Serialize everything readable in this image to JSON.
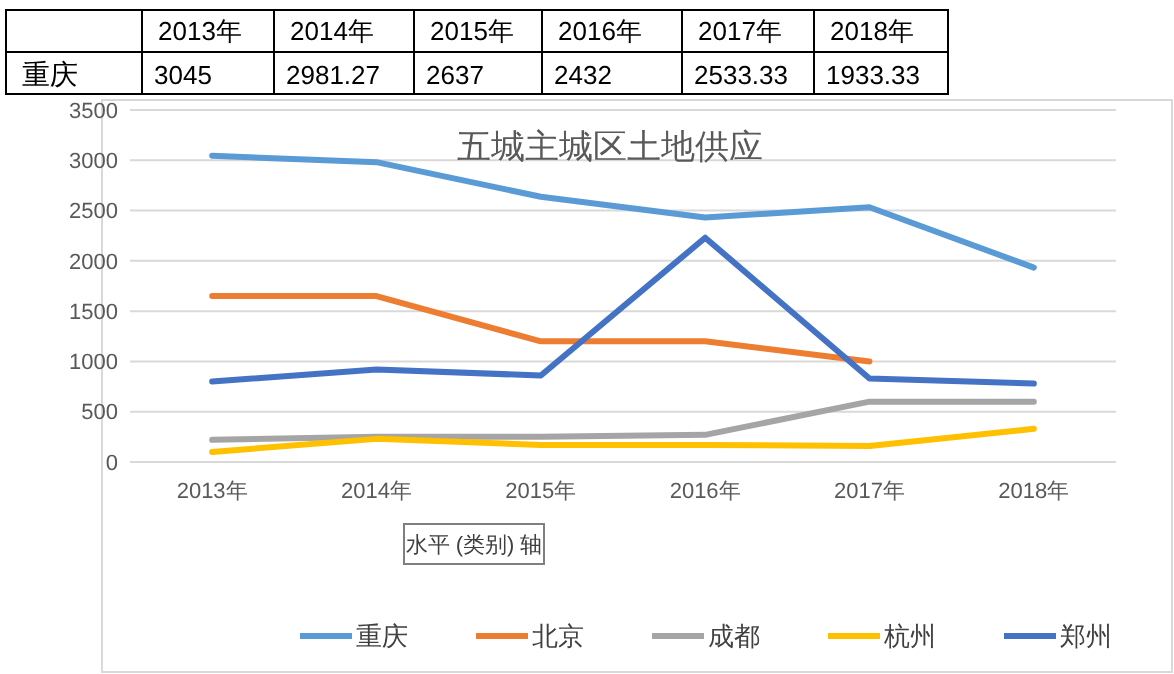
{
  "chart_data": {
    "type": "line",
    "title": "五城主城区土地供应",
    "categories": [
      "2013年",
      "2014年",
      "2015年",
      "2016年",
      "2017年",
      "2018年"
    ],
    "series": [
      {
        "name": "重庆",
        "color": "#5b9bd5",
        "values": [
          3045,
          2981.27,
          2637,
          2432,
          2533.33,
          1933.33
        ]
      },
      {
        "name": "北京",
        "color": "#ed7d31",
        "values": [
          1650,
          1650,
          1200,
          1200,
          1000,
          null
        ]
      },
      {
        "name": "成都",
        "color": "#a5a5a5",
        "values": [
          220,
          250,
          250,
          270,
          600,
          600
        ]
      },
      {
        "name": "杭州",
        "color": "#ffc000",
        "values": [
          100,
          230,
          170,
          170,
          160,
          330
        ]
      },
      {
        "name": "郑州",
        "color": "#4472c4",
        "values": [
          800,
          920,
          860,
          2230,
          830,
          780
        ]
      }
    ],
    "ylim": [
      0,
      3500
    ],
    "yticks": [
      0,
      500,
      1000,
      1500,
      2000,
      2500,
      3000,
      3500
    ],
    "grid": "y",
    "legend": "bottom",
    "marker": "none",
    "line_style": "solid",
    "annotations": [
      "水平 (类别) 轴",
      "3045",
      "2981.27",
      "2637",
      "2432",
      "2533.33",
      "1933.33"
    ]
  }
}
